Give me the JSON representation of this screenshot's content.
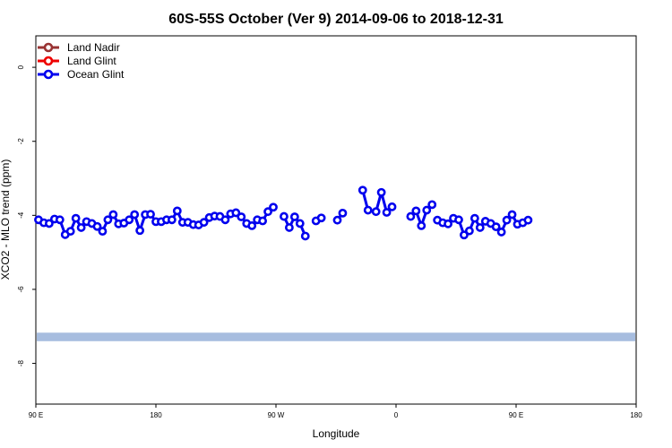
{
  "chart_data": {
    "type": "line",
    "title": "60S-55S October (Ver 9)   2014-09-06 to 2018-12-31",
    "xlabel": "Longitude",
    "ylabel": "XCO2 - MLO trend (ppm)",
    "xlim": [
      90,
      540
    ],
    "ylim": [
      -9.1,
      0.85
    ],
    "x_ticks": [
      {
        "value": 90,
        "label": "90 E"
      },
      {
        "value": 180,
        "label": "180"
      },
      {
        "value": 270,
        "label": "90 W"
      },
      {
        "value": 360,
        "label": "0"
      },
      {
        "value": 450,
        "label": "90 E"
      },
      {
        "value": 540,
        "label": "180"
      }
    ],
    "y_ticks": [
      {
        "value": 0,
        "label": "0"
      },
      {
        "value": -2,
        "label": "-2"
      },
      {
        "value": -4,
        "label": "-4"
      },
      {
        "value": -6,
        "label": "-6"
      },
      {
        "value": -8,
        "label": "-8"
      }
    ],
    "legend": [
      {
        "name": "Land Nadir",
        "color": "#993333"
      },
      {
        "name": "Land Glint",
        "color": "#ee0000"
      },
      {
        "name": "Ocean Glint",
        "color": "#0000ee"
      }
    ],
    "legend_position": "top-left",
    "band": {
      "y_low": -7.4,
      "y_high": -7.17,
      "color": "#a7bddf"
    },
    "series": [
      {
        "name": "Ocean Glint",
        "color": "#0000ee",
        "segments": [
          [
            [
              92,
              -4.12
            ],
            [
              96,
              -4.2
            ],
            [
              100,
              -4.22
            ],
            [
              104,
              -4.1
            ],
            [
              108,
              -4.12
            ],
            [
              112,
              -4.52
            ],
            [
              116,
              -4.43
            ],
            [
              120,
              -4.08
            ],
            [
              124,
              -4.33
            ],
            [
              128,
              -4.17
            ],
            [
              132,
              -4.22
            ],
            [
              136,
              -4.3
            ],
            [
              140,
              -4.43
            ],
            [
              144,
              -4.12
            ],
            [
              148,
              -3.98
            ],
            [
              152,
              -4.23
            ],
            [
              156,
              -4.21
            ],
            [
              160,
              -4.12
            ],
            [
              164,
              -3.98
            ],
            [
              168,
              -4.41
            ],
            [
              172,
              -3.98
            ],
            [
              176,
              -3.97
            ],
            [
              180,
              -4.17
            ],
            [
              184,
              -4.17
            ],
            [
              188,
              -4.12
            ],
            [
              192,
              -4.12
            ],
            [
              196,
              -3.88
            ],
            [
              200,
              -4.19
            ],
            [
              204,
              -4.19
            ],
            [
              208,
              -4.25
            ],
            [
              212,
              -4.26
            ],
            [
              216,
              -4.19
            ],
            [
              220,
              -4.06
            ],
            [
              224,
              -4.02
            ],
            [
              228,
              -4.03
            ],
            [
              232,
              -4.12
            ],
            [
              236,
              -3.96
            ],
            [
              240,
              -3.93
            ],
            [
              244,
              -4.04
            ],
            [
              248,
              -4.22
            ],
            [
              252,
              -4.28
            ],
            [
              256,
              -4.12
            ],
            [
              260,
              -4.15
            ],
            [
              264,
              -3.9
            ],
            [
              268,
              -3.78
            ]
          ],
          [
            [
              276,
              -4.03
            ],
            [
              280,
              -4.33
            ],
            [
              284,
              -4.04
            ],
            [
              288,
              -4.22
            ],
            [
              292,
              -4.56
            ]
          ],
          [
            [
              300,
              -4.15
            ],
            [
              304,
              -4.07
            ]
          ],
          [
            [
              316,
              -4.13
            ],
            [
              320,
              -3.94
            ]
          ],
          [
            [
              335,
              -3.32
            ],
            [
              339,
              -3.86
            ]
          ],
          [
            [
              345,
              -3.9
            ],
            [
              349,
              -3.38
            ],
            [
              353,
              -3.92
            ],
            [
              357,
              -3.77
            ]
          ],
          [
            [
              371,
              -4.03
            ],
            [
              375,
              -3.88
            ],
            [
              379,
              -4.28
            ],
            [
              383,
              -3.86
            ],
            [
              387,
              -3.71
            ]
          ],
          [
            [
              391,
              -4.13
            ],
            [
              395,
              -4.2
            ],
            [
              399,
              -4.23
            ],
            [
              403,
              -4.08
            ],
            [
              407,
              -4.12
            ],
            [
              411,
              -4.53
            ],
            [
              415,
              -4.42
            ],
            [
              419,
              -4.08
            ],
            [
              423,
              -4.33
            ],
            [
              427,
              -4.16
            ],
            [
              431,
              -4.22
            ],
            [
              435,
              -4.31
            ],
            [
              439,
              -4.45
            ],
            [
              443,
              -4.13
            ],
            [
              447,
              -3.98
            ],
            [
              451,
              -4.24
            ],
            [
              455,
              -4.2
            ],
            [
              459,
              -4.13
            ]
          ]
        ]
      }
    ]
  }
}
